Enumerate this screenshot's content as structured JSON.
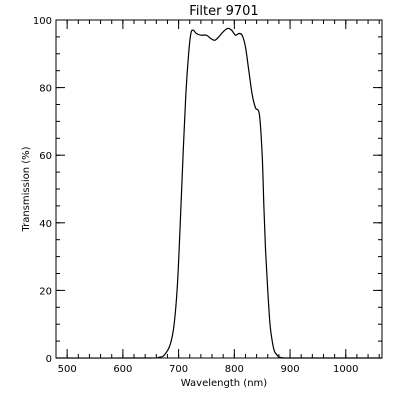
{
  "chart_data": {
    "type": "line",
    "title": "Filter 9701",
    "xlabel": "Wavelength (nm)",
    "ylabel": "Transmission (%)",
    "xlim": [
      480,
      1065
    ],
    "ylim": [
      0,
      100
    ],
    "x_ticks": [
      500,
      600,
      700,
      800,
      900,
      1000
    ],
    "x_tick_labels": [
      "500",
      "600",
      "700",
      "800",
      "900",
      "1000"
    ],
    "y_ticks": [
      0,
      20,
      40,
      60,
      80,
      100
    ],
    "y_tick_labels": [
      "0",
      "20",
      "40",
      "60",
      "80",
      "100"
    ],
    "grid": false,
    "series": [
      {
        "x": [
          480,
          640,
          665,
          675,
          685,
          692,
          698,
          703,
          708,
          713,
          718,
          722,
          726,
          732,
          740,
          750,
          758,
          765,
          772,
          780,
          788,
          795,
          802,
          808,
          814,
          820,
          826,
          832,
          838,
          845,
          850,
          853,
          856,
          860,
          864,
          868,
          872,
          876,
          880,
          886,
          892,
          900,
          1065
        ],
        "y": [
          0,
          0,
          0.2,
          1,
          4,
          10,
          22,
          40,
          60,
          78,
          90,
          96,
          97,
          96,
          95.5,
          95.5,
          94.5,
          94,
          95,
          96.5,
          97.5,
          97,
          95.5,
          96,
          95.5,
          92,
          85,
          78,
          74,
          72,
          60,
          45,
          32,
          20,
          10,
          5,
          2,
          1,
          0.3,
          0.1,
          0,
          0,
          0
        ]
      }
    ]
  }
}
